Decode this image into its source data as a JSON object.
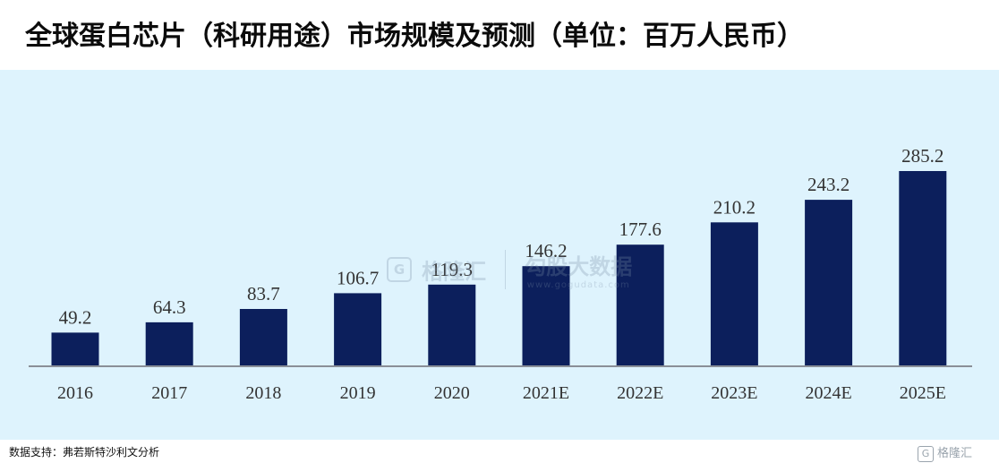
{
  "chart_data": {
    "type": "bar",
    "title": "全球蛋白芯片（科研用途）市场规模及预测（单位：百万人民币）",
    "categories": [
      "2016",
      "2017",
      "2018",
      "2019",
      "2020",
      "2021E",
      "2022E",
      "2023E",
      "2024E",
      "2025E"
    ],
    "values": [
      49.2,
      64.3,
      83.7,
      106.7,
      119.3,
      146.2,
      177.6,
      210.2,
      243.2,
      285.2
    ],
    "data_labels": [
      "49.2",
      "64.3",
      "83.7",
      "106.7",
      "119.3",
      "146.2",
      "177.6",
      "210.2",
      "243.2",
      "285.2"
    ],
    "xlabel": "",
    "ylabel": "",
    "ylim": [
      0,
      300
    ],
    "grid": false,
    "legend": "none",
    "bar_color": "#0c1f5c",
    "background_color": "#def3fd",
    "axis_color": "#8a8f97"
  },
  "source_note": "数据支持：弗若斯特沙利文分析",
  "watermark": {
    "brand_cn": "格隆汇",
    "brand2_cn": "勾股大数据",
    "url": "www.gogudata.com",
    "icon": "g-logo-icon"
  },
  "footer_logo": {
    "icon": "g-logo-icon",
    "text": "格隆汇"
  }
}
